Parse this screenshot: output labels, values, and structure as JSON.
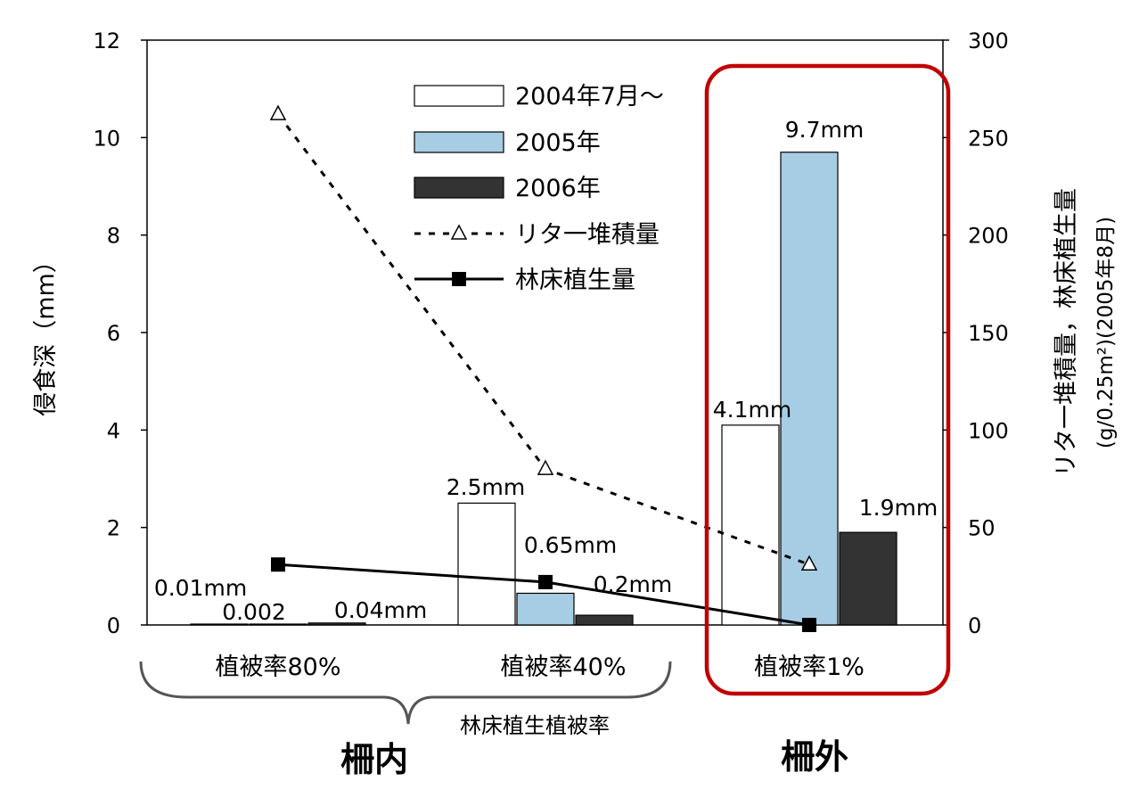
{
  "chart_data": {
    "type": "bar",
    "categories": [
      "植被率80%",
      "植被率40%",
      "植被率1%"
    ],
    "category_axis_label": "林床植生植被率",
    "group_labels": [
      "柵内",
      "柵外"
    ],
    "series": [
      {
        "name": "2004年7月～",
        "type": "bar",
        "axis": "left",
        "color": "#ffffff",
        "values": [
          0.01,
          2.5,
          4.1
        ]
      },
      {
        "name": "2005年",
        "type": "bar",
        "axis": "left",
        "color": "#a6cde3",
        "values": [
          0.002,
          0.65,
          9.7
        ]
      },
      {
        "name": "2006年",
        "type": "bar",
        "axis": "left",
        "color": "#333333",
        "values": [
          0.04,
          0.2,
          1.9
        ]
      },
      {
        "name": "リタ一堆積量",
        "type": "line",
        "style": "dotted",
        "marker": "triangle",
        "axis": "right",
        "values": [
          262,
          80,
          31
        ]
      },
      {
        "name": "林床植生量",
        "type": "line",
        "style": "solid",
        "marker": "square",
        "axis": "right",
        "values": [
          31,
          22,
          0
        ]
      }
    ],
    "data_labels": [
      {
        "text": "0.01mm"
      },
      {
        "text": "0.002"
      },
      {
        "text": "0.04mm"
      },
      {
        "text": "2.5mm"
      },
      {
        "text": "0.65mm"
      },
      {
        "text": "0.2mm"
      },
      {
        "text": "4.1mm"
      },
      {
        "text": "9.7mm"
      },
      {
        "text": "1.9mm"
      }
    ],
    "ylabel": "侵食深（mm）",
    "y2label_line1": "リタ一堆積量，林床植生量",
    "y2label_line2": "(g/0.25m²)(2005年8月)",
    "ylim": [
      0,
      12
    ],
    "y2lim": [
      0,
      300
    ],
    "yticks": [
      "0",
      "2",
      "4",
      "6",
      "8",
      "10",
      "12"
    ],
    "y2ticks": [
      "0",
      "50",
      "100",
      "150",
      "200",
      "250",
      "300"
    ],
    "legend_position": "top-center",
    "highlight_color": "#c00000"
  }
}
